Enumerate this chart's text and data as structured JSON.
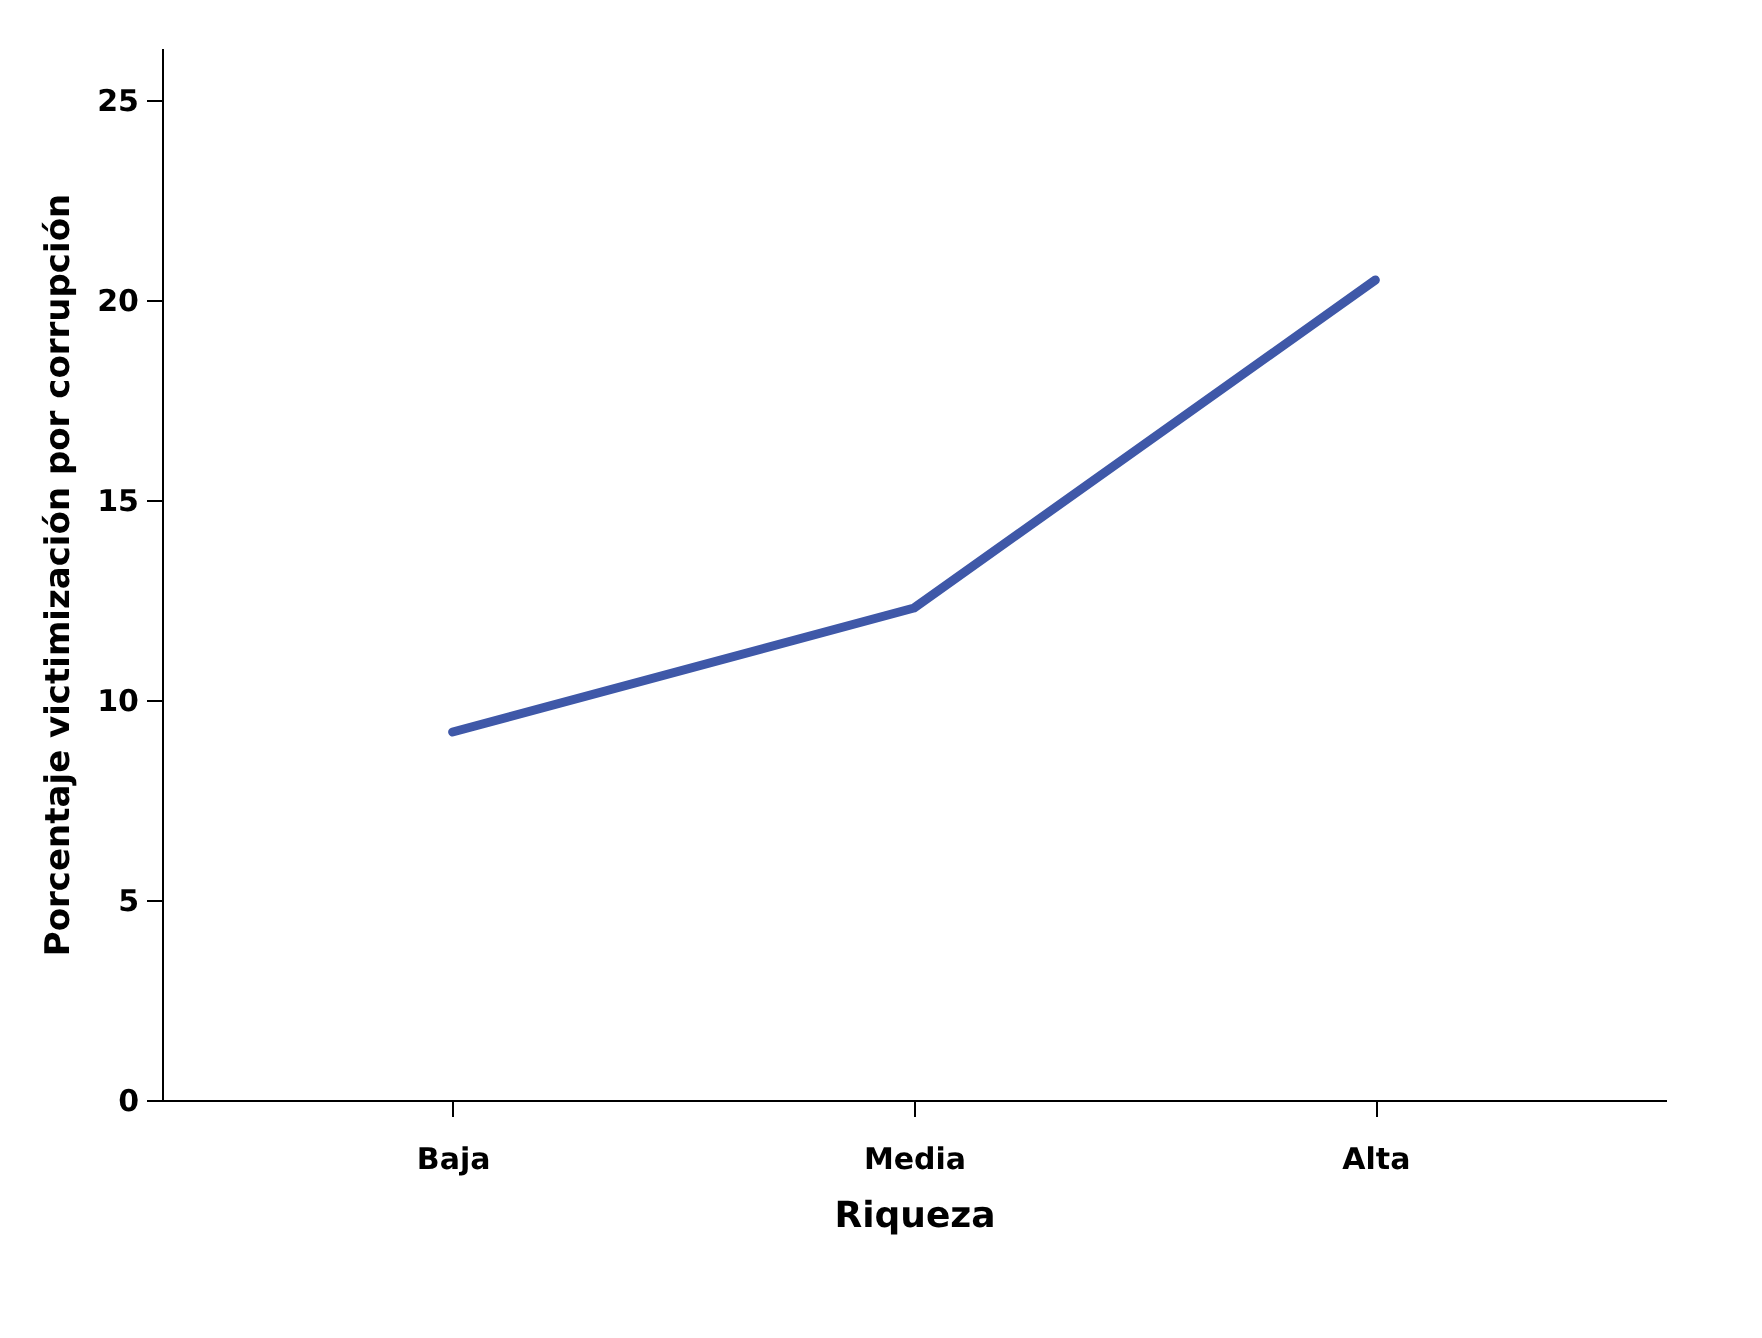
{
  "chart_data": {
    "type": "line",
    "xlabel": "Riqueza",
    "ylabel": "Porcentaje victimización por corrupción",
    "categories": [
      "Baja",
      "Media",
      "Alta"
    ],
    "series": [
      {
        "color": "#3f58a8",
        "values": [
          9.2,
          12.3,
          20.5
        ]
      }
    ],
    "ylim": [
      0,
      26.3
    ],
    "yticks": [
      0,
      5,
      10,
      15,
      20,
      25
    ],
    "grid": false,
    "marker": "none",
    "line_style": "solid"
  }
}
